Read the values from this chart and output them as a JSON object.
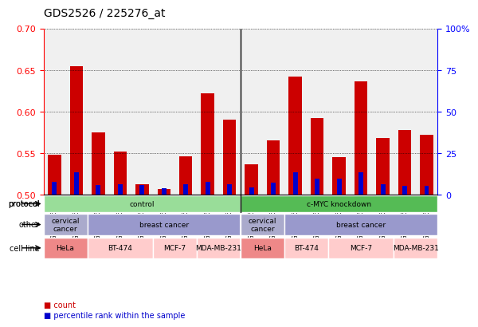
{
  "title": "GDS2526 / 225276_at",
  "samples": [
    "GSM136095",
    "GSM136097",
    "GSM136079",
    "GSM136081",
    "GSM136083",
    "GSM136085",
    "GSM136087",
    "GSM136089",
    "GSM136091",
    "GSM136096",
    "GSM136098",
    "GSM136080",
    "GSM136082",
    "GSM136084",
    "GSM136086",
    "GSM136088",
    "GSM136090",
    "GSM136092"
  ],
  "count_values": [
    0.548,
    0.655,
    0.575,
    0.552,
    0.513,
    0.507,
    0.546,
    0.622,
    0.59,
    0.537,
    0.565,
    0.642,
    0.592,
    0.545,
    0.636,
    0.568,
    0.578,
    0.572
  ],
  "percentile_values": [
    0.515,
    0.527,
    0.512,
    0.513,
    0.512,
    0.508,
    0.513,
    0.515,
    0.513,
    0.509,
    0.514,
    0.527,
    0.519,
    0.519,
    0.527,
    0.513,
    0.511,
    0.511
  ],
  "ymin": 0.5,
  "ymax": 0.7,
  "yticks": [
    0.5,
    0.55,
    0.6,
    0.65,
    0.7
  ],
  "right_yticks": [
    0,
    25,
    50,
    75,
    100
  ],
  "bar_color": "#cc0000",
  "percentile_color": "#0000cc",
  "bg_color": "#ffffff",
  "grid_color": "#000000",
  "protocol_row": {
    "label": "protocol",
    "groups": [
      {
        "text": "control",
        "span": [
          0,
          9
        ],
        "color": "#99dd99"
      },
      {
        "text": "c-MYC knockdown",
        "span": [
          9,
          18
        ],
        "color": "#55bb55"
      }
    ]
  },
  "other_row": {
    "label": "other",
    "groups": [
      {
        "text": "cervical\ncancer",
        "span": [
          0,
          2
        ],
        "color": "#aaaacc"
      },
      {
        "text": "breast cancer",
        "span": [
          2,
          9
        ],
        "color": "#9999cc"
      },
      {
        "text": "cervical\ncancer",
        "span": [
          9,
          11
        ],
        "color": "#aaaacc"
      },
      {
        "text": "breast cancer",
        "span": [
          11,
          18
        ],
        "color": "#9999cc"
      }
    ]
  },
  "cellline_row": {
    "label": "cell line",
    "groups": [
      {
        "text": "HeLa",
        "span": [
          0,
          2
        ],
        "color": "#ee8888"
      },
      {
        "text": "BT-474",
        "span": [
          2,
          5
        ],
        "color": "#ffcccc"
      },
      {
        "text": "MCF-7",
        "span": [
          5,
          7
        ],
        "color": "#ffcccc"
      },
      {
        "text": "MDA-MB-231",
        "span": [
          7,
          9
        ],
        "color": "#ffcccc"
      },
      {
        "text": "HeLa",
        "span": [
          9,
          11
        ],
        "color": "#ee8888"
      },
      {
        "text": "BT-474",
        "span": [
          11,
          13
        ],
        "color": "#ffcccc"
      },
      {
        "text": "MCF-7",
        "span": [
          13,
          16
        ],
        "color": "#ffcccc"
      },
      {
        "text": "MDA-MB-231",
        "span": [
          16,
          18
        ],
        "color": "#ffcccc"
      }
    ]
  }
}
